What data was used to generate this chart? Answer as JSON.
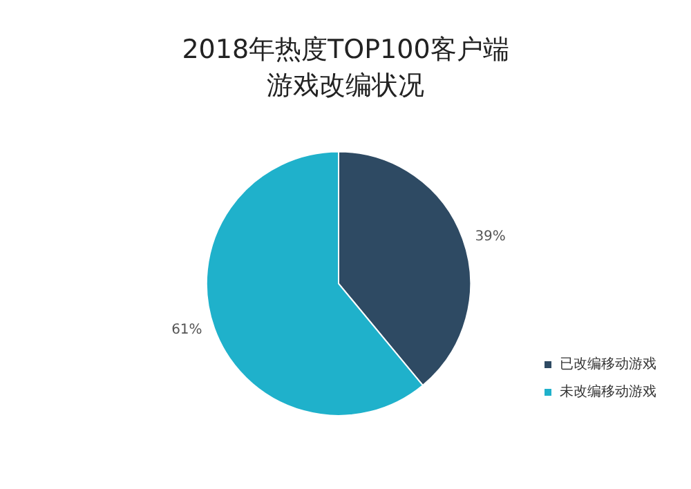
{
  "chart_data": {
    "type": "pie",
    "title": "2018年热度TOP100客户端游戏改编状况",
    "categories": [
      "已改编移动游戏",
      "未改编移动游戏"
    ],
    "values": [
      39,
      61
    ],
    "colors": [
      "#2e4a63",
      "#1fb1cb"
    ],
    "value_labels": [
      "39%",
      "61%"
    ],
    "legend": "bottom right"
  }
}
